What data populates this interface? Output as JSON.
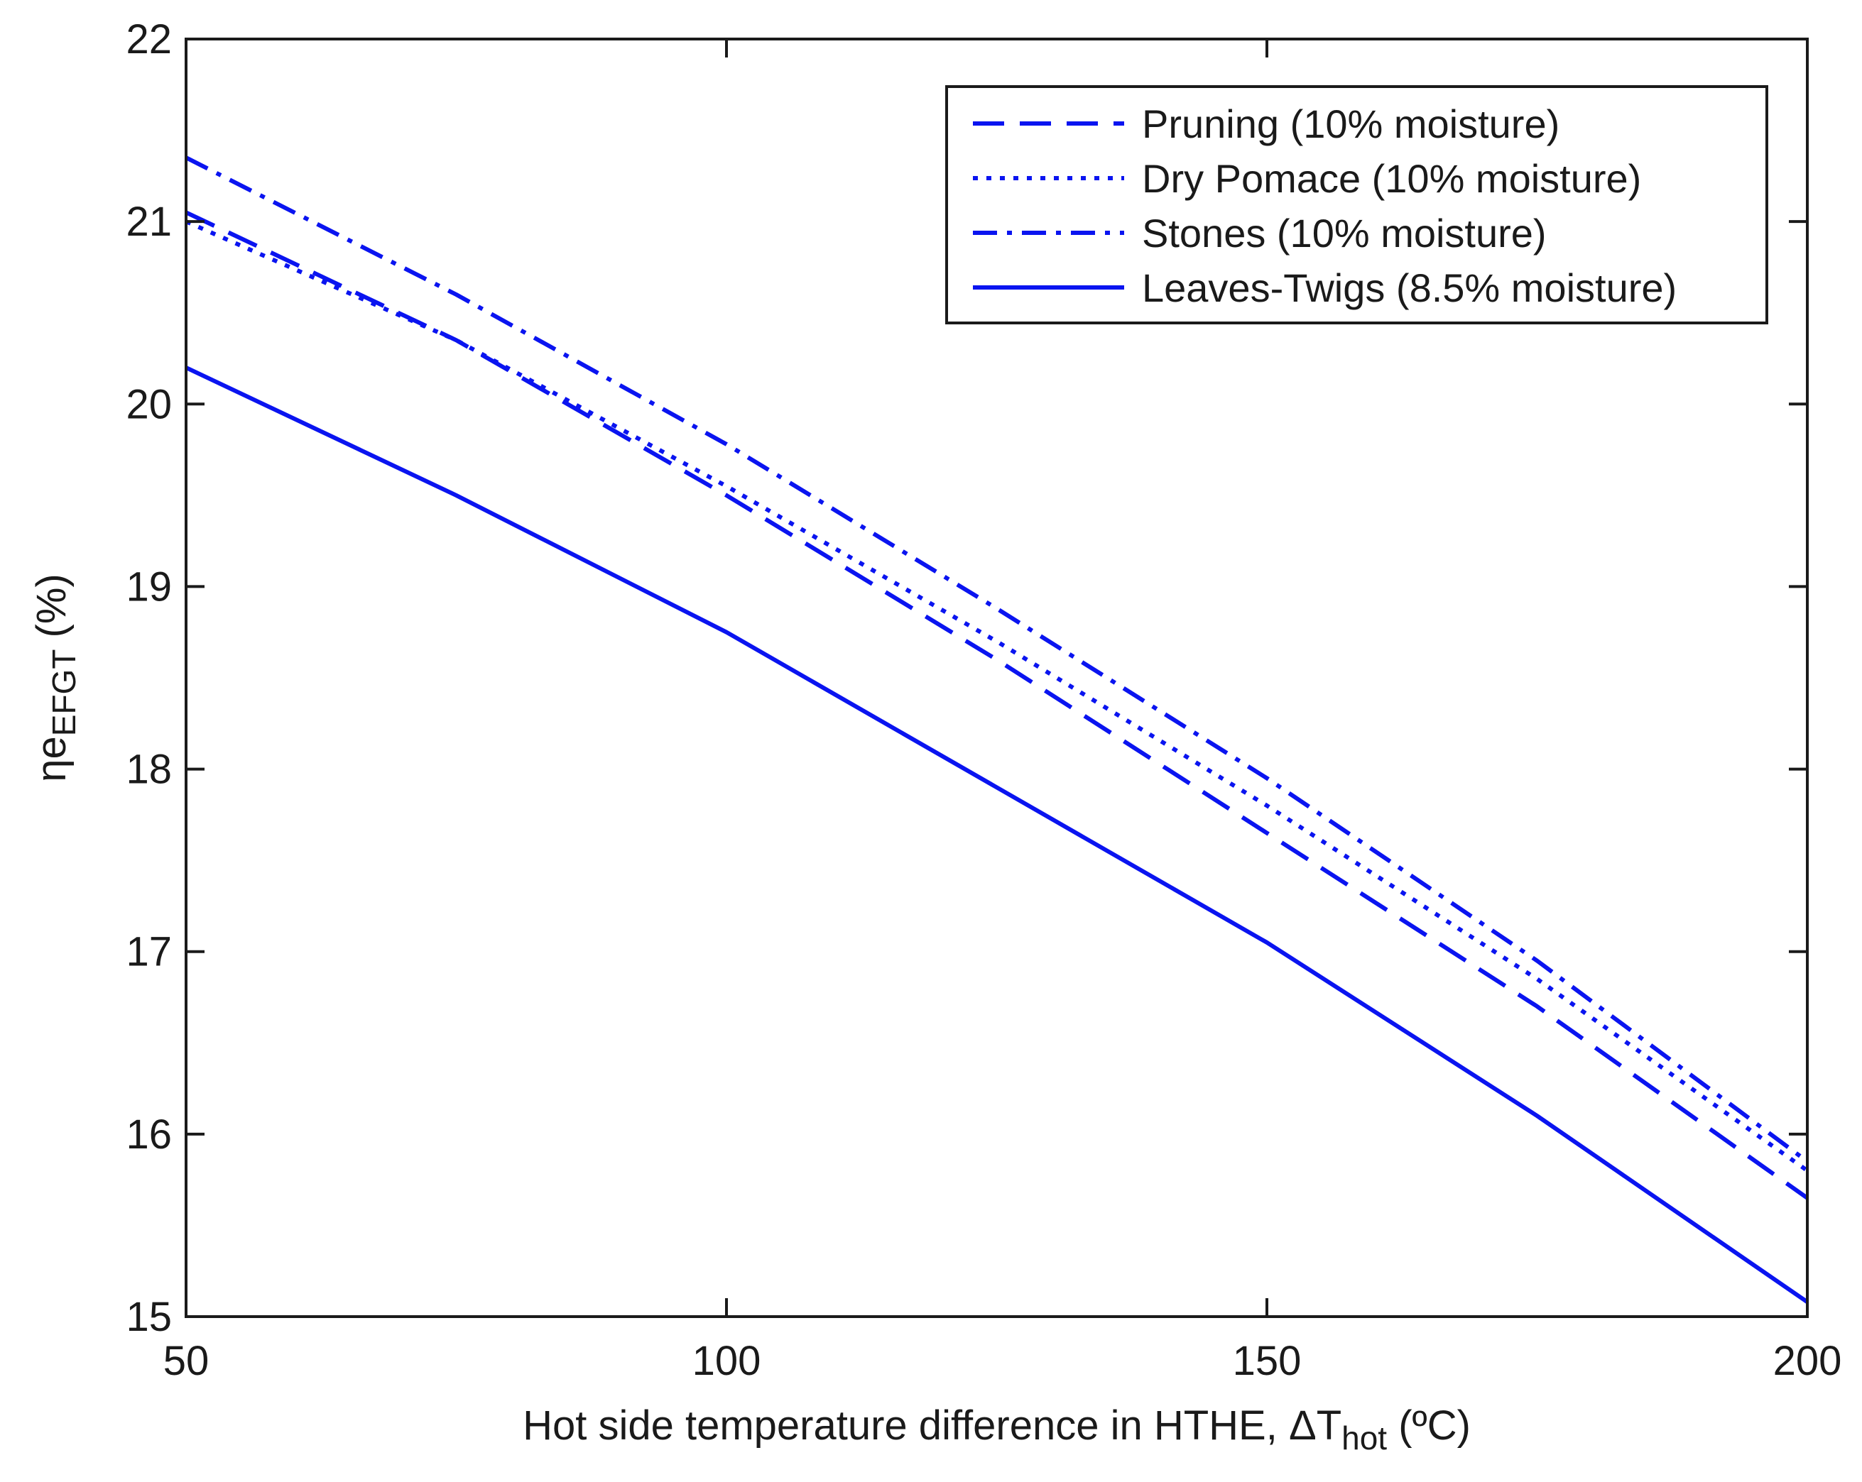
{
  "chart_data": {
    "type": "line",
    "title": "",
    "xlabel": {
      "main": "Hot side temperature difference in HTHE, ",
      "symbol": "ΔT",
      "subscript": "hot",
      "unit": " (ºC)"
    },
    "ylabel": {
      "main": "ηe",
      "subscript": "EFGT",
      "unit": " (%)"
    },
    "xlim": [
      50,
      200
    ],
    "ylim": [
      15,
      22
    ],
    "xticks": [
      50,
      100,
      150,
      200
    ],
    "yticks": [
      15,
      16,
      17,
      18,
      19,
      20,
      21,
      22
    ],
    "grid": false,
    "legend_position": "top-right",
    "color": "#0a14f0",
    "x": [
      50,
      75,
      100,
      125,
      150,
      175,
      200
    ],
    "series": [
      {
        "name": "Pruning (10% moisture)",
        "style": "dashed",
        "values": [
          21.05,
          20.35,
          19.5,
          18.6,
          17.65,
          16.7,
          15.65
        ]
      },
      {
        "name": "Dry Pomace (10% moisture)",
        "style": "dotted",
        "values": [
          21.0,
          20.35,
          19.55,
          18.7,
          17.8,
          16.85,
          15.8
        ]
      },
      {
        "name": "Stones (10% moisture)",
        "style": "dashdot",
        "values": [
          21.35,
          20.6,
          19.78,
          18.88,
          17.95,
          16.95,
          15.85
        ]
      },
      {
        "name": "Leaves-Twigs (8.5% moisture)",
        "style": "solid",
        "values": [
          20.2,
          19.5,
          18.75,
          17.9,
          17.05,
          16.1,
          15.08
        ]
      }
    ]
  }
}
